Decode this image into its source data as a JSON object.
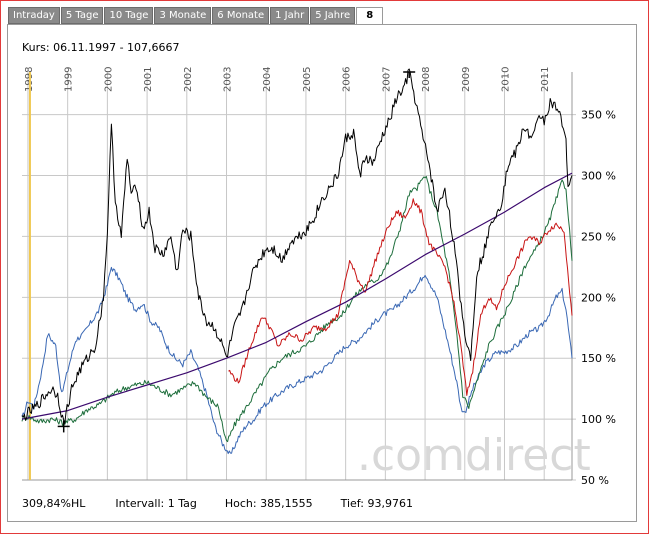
{
  "tabs": [
    "Intraday",
    "5 Tage",
    "10 Tage",
    "3 Monate",
    "6 Monate",
    "1 Jahr",
    "5 Jahre",
    "8"
  ],
  "active_tab": "8",
  "kurs_label": "Kurs: 06.11.1997 - 107,6667",
  "footer": {
    "hl": "309,84%HL",
    "intervall": "Intervall: 1 Tag",
    "hoch": "Hoch: 385,1555",
    "tief": "Tief: 93,9761"
  },
  "watermark": ".comdirect",
  "colors": {
    "main": "#000000",
    "blue": "#3a68b4",
    "red": "#c81414",
    "green": "#1e6e3c",
    "trend": "#3c0a6e",
    "marker": "#f0c850",
    "grid": "#c8c8c8",
    "watermark": "#d8d8d8",
    "frame": "#e23a3a"
  },
  "chart_data": {
    "type": "line",
    "x_ticks": [
      "1998",
      "1999",
      "2000",
      "2001",
      "2002",
      "2003",
      "2004",
      "2005",
      "2006",
      "2007",
      "2008",
      "2009",
      "2010",
      "2011"
    ],
    "y_ticks": [
      "50 %",
      "100 %",
      "150 %",
      "200 %",
      "250 %",
      "300 %",
      "350 %"
    ],
    "ylim": [
      50,
      385
    ],
    "xlim": [
      1997.85,
      2011.7
    ],
    "grid": true,
    "series": [
      {
        "key": "main",
        "x": [
          1997.85,
          1998.0,
          1998.2,
          1998.4,
          1998.6,
          1998.75,
          1998.9,
          1999.1,
          1999.3,
          1999.5,
          1999.7,
          1999.9,
          2000.0,
          2000.1,
          2000.2,
          2000.35,
          2000.5,
          2000.6,
          2000.75,
          2000.9,
          2001.05,
          2001.2,
          2001.4,
          2001.6,
          2001.75,
          2001.9,
          2002.1,
          2002.3,
          2002.5,
          2002.7,
          2002.9,
          2003.0,
          2003.2,
          2003.4,
          2003.6,
          2003.8,
          2004.0,
          2004.2,
          2004.4,
          2004.6,
          2004.8,
          2005.0,
          2005.2,
          2005.4,
          2005.6,
          2005.8,
          2006.0,
          2006.2,
          2006.35,
          2006.5,
          2006.7,
          2006.9,
          2007.1,
          2007.3,
          2007.45,
          2007.6,
          2007.8,
          2007.95,
          2008.1,
          2008.3,
          2008.5,
          2008.7,
          2008.85,
          2009.0,
          2009.15,
          2009.3,
          2009.5,
          2009.7,
          2009.9,
          2010.1,
          2010.3,
          2010.5,
          2010.7,
          2010.9,
          2011.0,
          2011.15,
          2011.3,
          2011.45,
          2011.55,
          2011.6,
          2011.7
        ],
        "y": [
          100,
          105,
          110,
          118,
          125,
          120,
          96,
          125,
          140,
          150,
          160,
          200,
          255,
          340,
          280,
          250,
          315,
          285,
          290,
          255,
          270,
          240,
          235,
          250,
          220,
          255,
          250,
          200,
          180,
          175,
          160,
          150,
          175,
          190,
          215,
          230,
          240,
          240,
          230,
          245,
          250,
          255,
          265,
          280,
          290,
          300,
          330,
          335,
          300,
          315,
          310,
          330,
          345,
          365,
          370,
          385,
          355,
          330,
          310,
          270,
          290,
          250,
          210,
          170,
          150,
          220,
          240,
          265,
          275,
          310,
          320,
          340,
          330,
          350,
          345,
          360,
          355,
          345,
          330,
          290,
          300
        ]
      },
      {
        "key": "blue",
        "x": [
          1997.85,
          1998.0,
          1998.15,
          1998.35,
          1998.5,
          1998.7,
          1998.85,
          1999.0,
          1999.2,
          1999.4,
          1999.6,
          1999.8,
          2000.0,
          2000.1,
          2000.3,
          2000.5,
          2000.7,
          2000.9,
          2001.1,
          2001.3,
          2001.5,
          2001.7,
          2001.9,
          2002.1,
          2002.3,
          2002.5,
          2002.7,
          2002.9,
          2003.1,
          2003.3,
          2003.5,
          2003.7,
          2003.9,
          2004.2,
          2004.5,
          2004.8,
          2005.1,
          2005.4,
          2005.7,
          2006.0,
          2006.3,
          2006.6,
          2006.9,
          2007.2,
          2007.5,
          2007.8,
          2008.0,
          2008.3,
          2008.6,
          2008.8,
          2008.9,
          2009.0,
          2009.2,
          2009.5,
          2009.8,
          2010.0,
          2010.3,
          2010.6,
          2010.9,
          2011.1,
          2011.3,
          2011.45,
          2011.55,
          2011.7
        ],
        "y": [
          100,
          115,
          110,
          140,
          170,
          160,
          120,
          140,
          165,
          170,
          180,
          190,
          210,
          225,
          215,
          200,
          190,
          195,
          180,
          175,
          160,
          150,
          145,
          155,
          140,
          120,
          95,
          80,
          70,
          85,
          95,
          100,
          110,
          118,
          125,
          130,
          135,
          140,
          150,
          160,
          165,
          175,
          185,
          190,
          200,
          210,
          220,
          200,
          160,
          130,
          110,
          105,
          125,
          145,
          155,
          155,
          160,
          170,
          175,
          185,
          200,
          205,
          190,
          150
        ]
      },
      {
        "key": "green",
        "x": [
          1997.85,
          1998.0,
          1998.3,
          1998.6,
          1998.9,
          1999.2,
          1999.5,
          1999.8,
          2000.1,
          2000.4,
          2000.7,
          2001.0,
          2001.3,
          2001.6,
          2001.9,
          2002.2,
          2002.5,
          2002.8,
          2003.0,
          2003.2,
          2003.5,
          2003.8,
          2004.1,
          2004.4,
          2004.7,
          2005.0,
          2005.3,
          2005.6,
          2005.9,
          2006.2,
          2006.5,
          2006.8,
          2007.1,
          2007.4,
          2007.6,
          2007.8,
          2008.0,
          2008.3,
          2008.6,
          2008.8,
          2008.95,
          2009.1,
          2009.3,
          2009.6,
          2009.9,
          2010.2,
          2010.5,
          2010.8,
          2011.1,
          2011.3,
          2011.45,
          2011.55,
          2011.7
        ],
        "y": [
          100,
          102,
          98,
          100,
          97,
          100,
          108,
          112,
          120,
          125,
          128,
          130,
          125,
          120,
          125,
          130,
          118,
          110,
          80,
          95,
          110,
          125,
          140,
          150,
          155,
          160,
          170,
          180,
          185,
          200,
          210,
          215,
          230,
          260,
          285,
          290,
          300,
          270,
          220,
          170,
          120,
          110,
          130,
          160,
          180,
          200,
          225,
          240,
          260,
          280,
          295,
          290,
          230
        ]
      },
      {
        "key": "red",
        "x": [
          2003.05,
          2003.3,
          2003.6,
          2003.9,
          2004.1,
          2004.3,
          2004.6,
          2004.9,
          2005.2,
          2005.5,
          2005.8,
          2006.1,
          2006.3,
          2006.5,
          2006.8,
          2007.1,
          2007.3,
          2007.5,
          2007.7,
          2007.9,
          2008.1,
          2008.3,
          2008.5,
          2008.7,
          2008.9,
          2009.05,
          2009.2,
          2009.4,
          2009.6,
          2009.8,
          2010.0,
          2010.3,
          2010.6,
          2010.9,
          2011.1,
          2011.3,
          2011.5,
          2011.7
        ],
        "y": [
          140,
          130,
          160,
          185,
          175,
          160,
          170,
          165,
          175,
          175,
          185,
          230,
          215,
          205,
          235,
          260,
          270,
          265,
          280,
          270,
          245,
          235,
          225,
          200,
          160,
          120,
          140,
          185,
          200,
          190,
          210,
          230,
          250,
          245,
          255,
          260,
          255,
          185
        ]
      },
      {
        "key": "trend",
        "x": [
          1997.85,
          1999.0,
          2000.0,
          2001.0,
          2002.0,
          2003.0,
          2004.0,
          2005.0,
          2006.0,
          2007.0,
          2008.0,
          2009.0,
          2010.0,
          2011.0,
          2011.7
        ],
        "y": [
          100,
          107,
          118,
          128,
          138,
          150,
          163,
          180,
          196,
          215,
          235,
          252,
          270,
          290,
          302
        ]
      }
    ],
    "high": {
      "x": 2007.6,
      "y": 385
    },
    "low": {
      "x": 1998.9,
      "y": 94
    },
    "marker_x": 1998.05
  }
}
